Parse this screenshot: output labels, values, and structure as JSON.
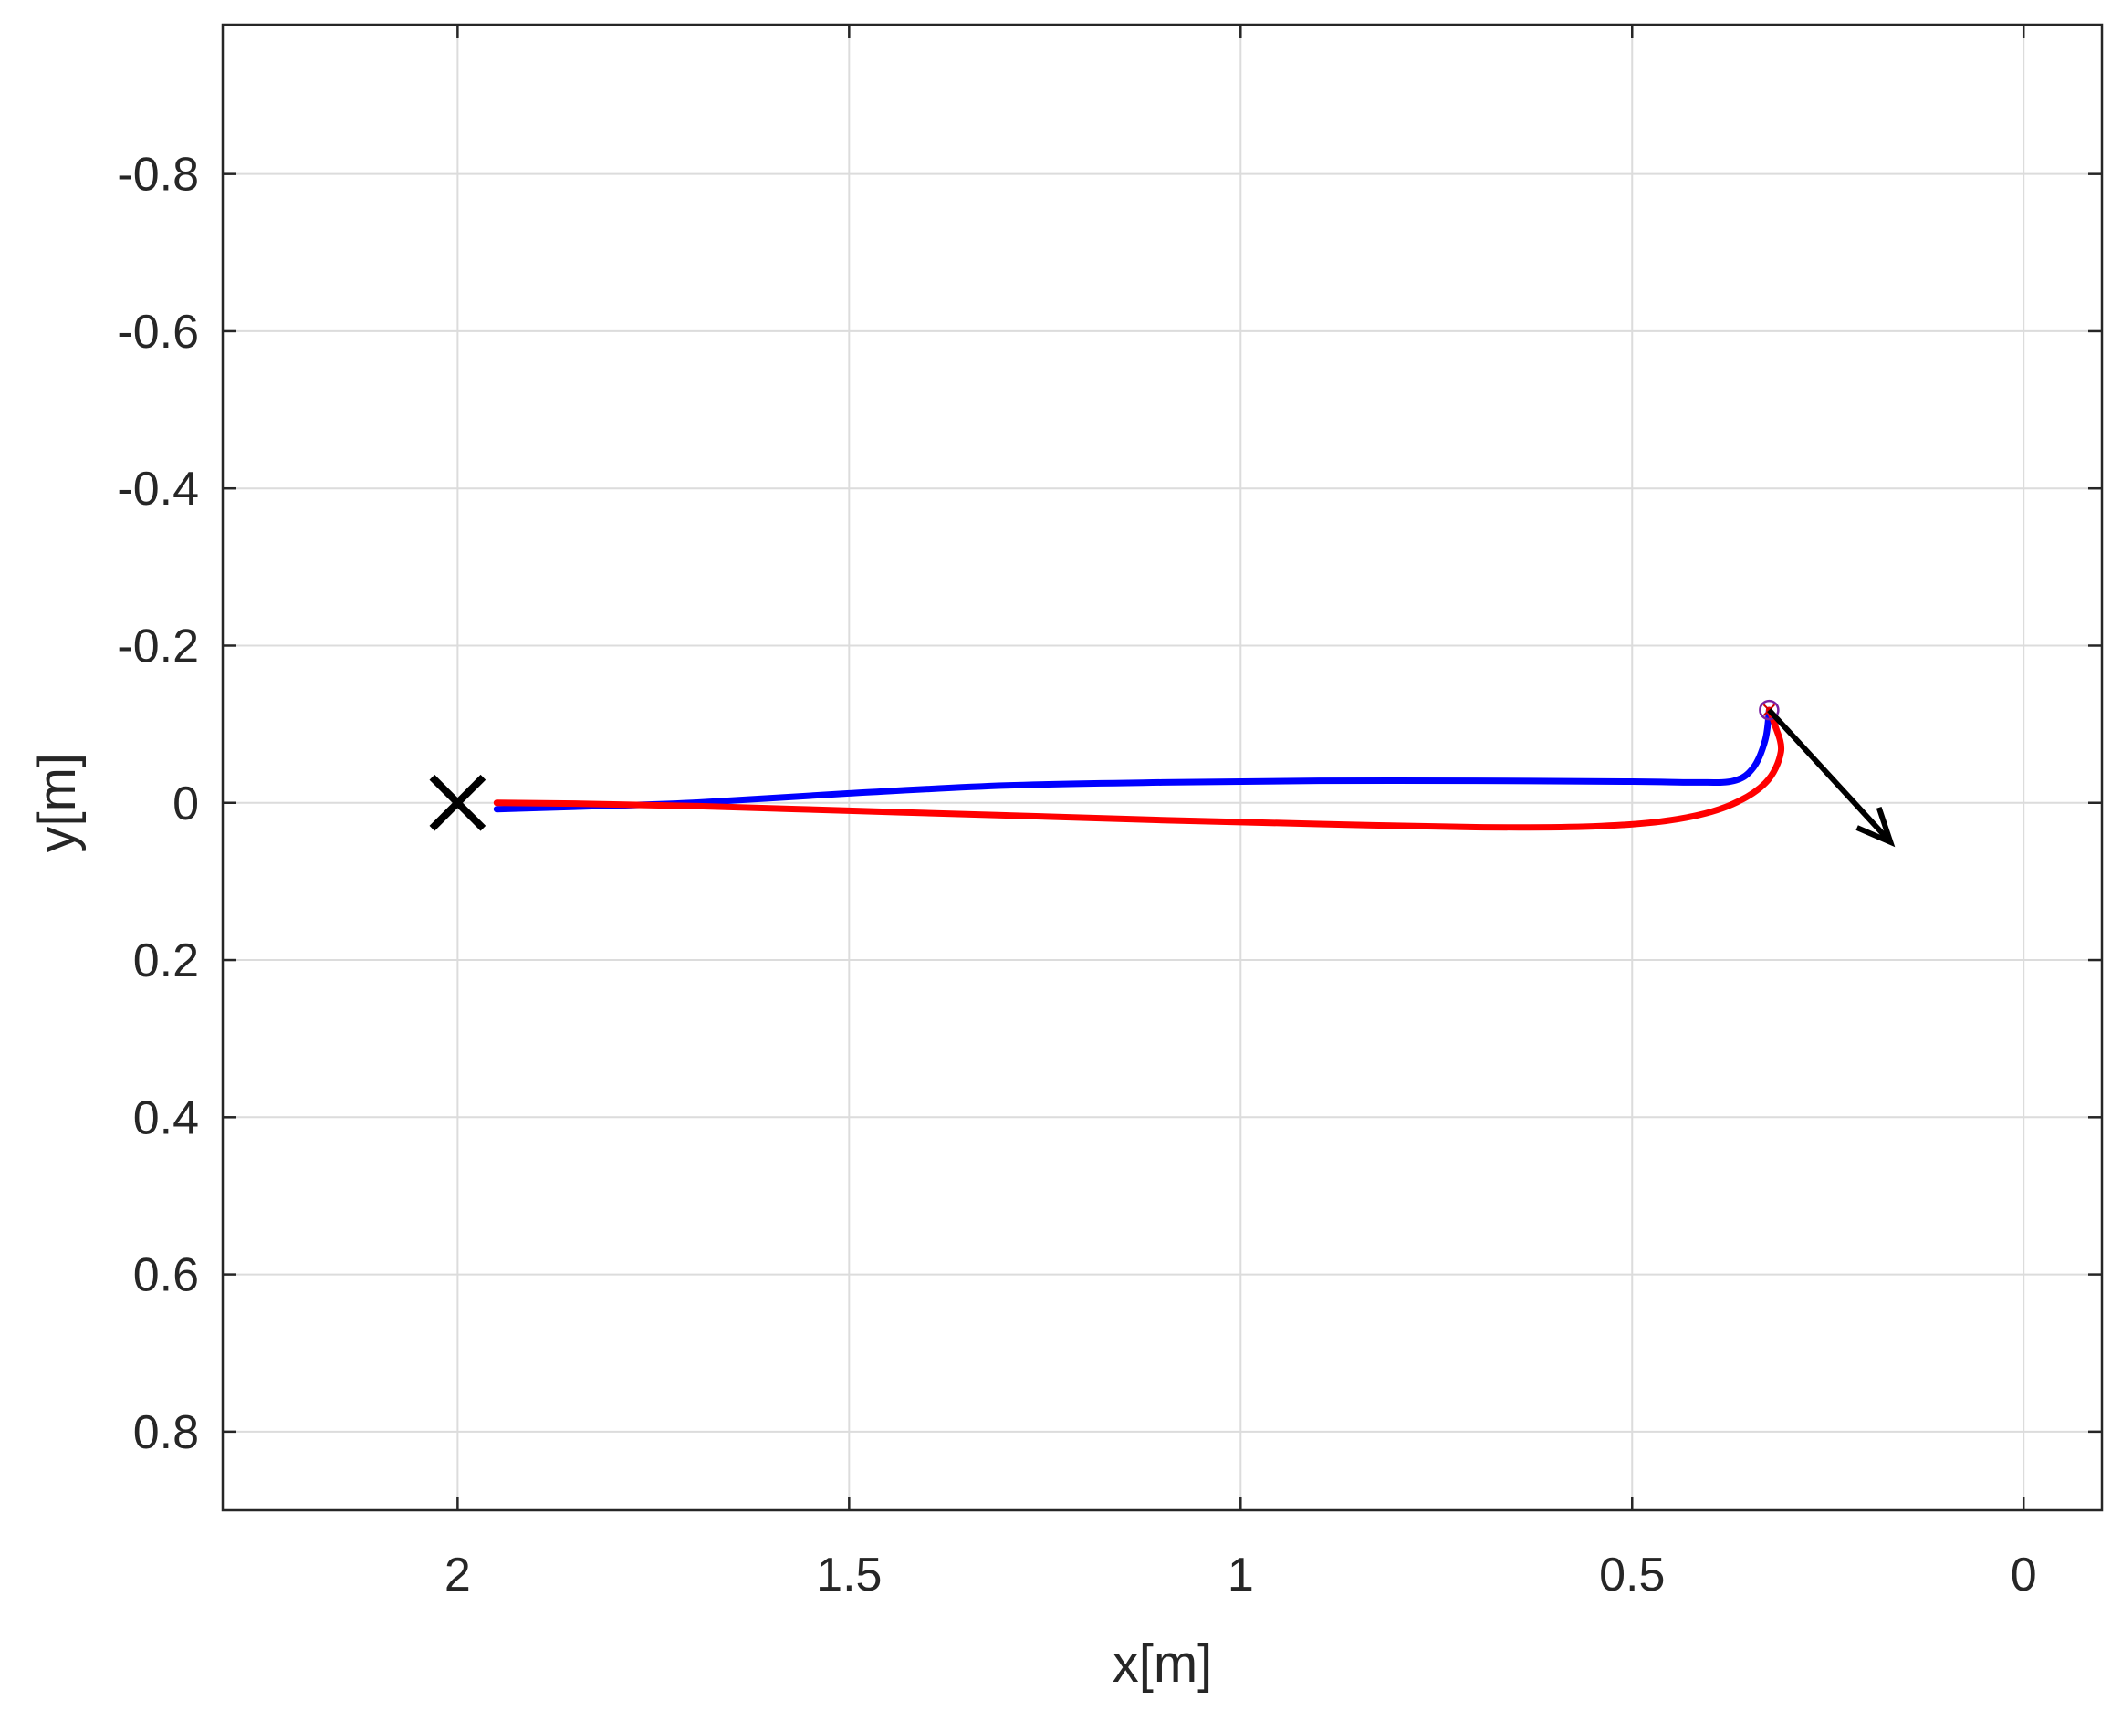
{
  "chart_data": {
    "type": "line",
    "title": "",
    "xlabel": "x[m]",
    "ylabel": "y[m]",
    "xlim": [
      -0.1,
      2.3
    ],
    "ylim": [
      -0.99,
      0.9
    ],
    "x_reversed": true,
    "y_reversed": true,
    "grid": true,
    "x_ticks": [
      2,
      1.5,
      1,
      0.5,
      0
    ],
    "x_tick_labels": [
      "2",
      "1.5",
      "1",
      "0.5",
      "0"
    ],
    "y_ticks": [
      -0.8,
      -0.6,
      -0.4,
      -0.2,
      0,
      0.2,
      0.4,
      0.6,
      0.8
    ],
    "y_tick_labels": [
      "-0.8",
      "-0.6",
      "-0.4",
      "-0.2",
      "0",
      "0.2",
      "0.4",
      "0.6",
      "0.8"
    ],
    "series": [
      {
        "color": "#0000ff",
        "x": [
          1.95,
          1.85,
          1.7,
          1.5,
          1.3,
          1.1,
          0.9,
          0.7,
          0.5,
          0.42,
          0.37,
          0.345,
          0.33,
          0.325
        ],
        "y": [
          0.008,
          0.005,
          0.0,
          -0.012,
          -0.022,
          -0.026,
          -0.028,
          -0.028,
          -0.027,
          -0.026,
          -0.028,
          -0.045,
          -0.08,
          -0.118
        ]
      },
      {
        "color": "#ff0000",
        "x": [
          1.95,
          1.85,
          1.7,
          1.5,
          1.3,
          1.1,
          0.9,
          0.7,
          0.55,
          0.45,
          0.38,
          0.33,
          0.31,
          0.318,
          0.325
        ],
        "y": [
          0.0,
          0.001,
          0.004,
          0.01,
          0.016,
          0.022,
          0.027,
          0.031,
          0.03,
          0.022,
          0.005,
          -0.025,
          -0.065,
          -0.1,
          -0.118
        ]
      }
    ],
    "markers": [
      {
        "type": "x",
        "x": 2.0,
        "y": 0.0,
        "color": "#000000"
      },
      {
        "type": "circle-x",
        "x": 0.325,
        "y": -0.118,
        "color": "#7a1fa2"
      }
    ],
    "arrow": {
      "from": [
        0.325,
        -0.118
      ],
      "to": [
        0.17,
        0.05
      ],
      "color": "#000000"
    }
  }
}
